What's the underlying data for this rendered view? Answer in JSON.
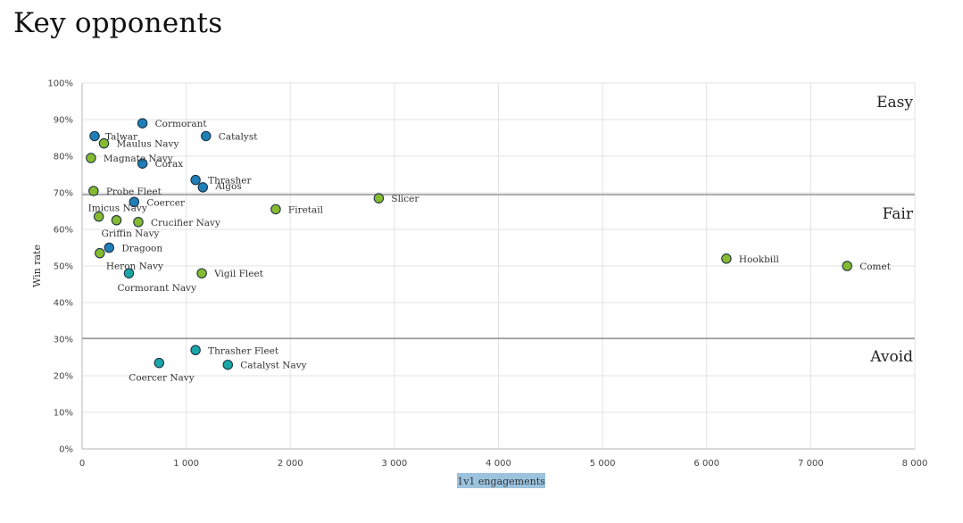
{
  "page": {
    "title": "Key opponents"
  },
  "chart_data": {
    "type": "scatter",
    "xlabel": "1v1 engagements",
    "ylabel": "Win rate",
    "xlim": [
      0,
      8000
    ],
    "ylim": [
      0,
      100
    ],
    "x_ticks": [
      "0",
      "1 000",
      "2 000",
      "3 000",
      "4 000",
      "5 000",
      "6 000",
      "7 000",
      "8 000"
    ],
    "y_ticks": [
      "0%",
      "10%",
      "20%",
      "30%",
      "40%",
      "50%",
      "60%",
      "70%",
      "80%",
      "90%",
      "100%"
    ],
    "grid": true,
    "thresholds": [
      {
        "y": 69.5,
        "label": "Fair"
      },
      {
        "y": 30.2,
        "label": "Avoid"
      }
    ],
    "zones": [
      "Easy",
      "Fair",
      "Avoid"
    ],
    "colors": {
      "blue": "#1f7fb7",
      "green": "#86bb2f",
      "teal": "#1aa6a6",
      "xlabel_bg": "#9cc3de"
    },
    "points": [
      {
        "name": "Cormorant",
        "x": 580,
        "y": 89,
        "color": "blue"
      },
      {
        "name": "Talwar",
        "x": 120,
        "y": 85.5,
        "color": "blue"
      },
      {
        "name": "Catalyst",
        "x": 1190,
        "y": 85.5,
        "color": "blue"
      },
      {
        "name": "Maulus Navy",
        "x": 210,
        "y": 83.5,
        "color": "green"
      },
      {
        "name": "Magnate Navy",
        "x": 85,
        "y": 79.5,
        "color": "green"
      },
      {
        "name": "Corax",
        "x": 580,
        "y": 78,
        "color": "blue"
      },
      {
        "name": "Thrasher",
        "x": 1090,
        "y": 73.5,
        "color": "blue"
      },
      {
        "name": "Algos",
        "x": 1160,
        "y": 71.5,
        "color": "blue"
      },
      {
        "name": "Probe Fleet",
        "x": 110,
        "y": 70.5,
        "color": "green"
      },
      {
        "name": "Slicer",
        "x": 2850,
        "y": 68.5,
        "color": "green"
      },
      {
        "name": "Coercer",
        "x": 500,
        "y": 67.5,
        "color": "blue"
      },
      {
        "name": "Firetail",
        "x": 1860,
        "y": 65.5,
        "color": "green"
      },
      {
        "name": "Imicus Navy",
        "x": 160,
        "y": 63.5,
        "color": "green"
      },
      {
        "name": "Griffin Navy",
        "x": 330,
        "y": 62.5,
        "color": "green"
      },
      {
        "name": "Crucifier Navy",
        "x": 540,
        "y": 62,
        "color": "green"
      },
      {
        "name": "Dragoon",
        "x": 260,
        "y": 55,
        "color": "blue"
      },
      {
        "name": "Heron Navy",
        "x": 170,
        "y": 53.5,
        "color": "green"
      },
      {
        "name": "Hookbill",
        "x": 6190,
        "y": 52,
        "color": "green"
      },
      {
        "name": "Comet",
        "x": 7350,
        "y": 50,
        "color": "green"
      },
      {
        "name": "Vigil Fleet",
        "x": 1150,
        "y": 48,
        "color": "green"
      },
      {
        "name": "Cormorant Navy",
        "x": 450,
        "y": 48,
        "color": "teal"
      },
      {
        "name": "Thrasher Fleet",
        "x": 1090,
        "y": 27,
        "color": "teal"
      },
      {
        "name": "Coercer Navy",
        "x": 740,
        "y": 23.5,
        "color": "teal"
      },
      {
        "name": "Catalyst Navy",
        "x": 1400,
        "y": 23,
        "color": "teal"
      }
    ]
  }
}
